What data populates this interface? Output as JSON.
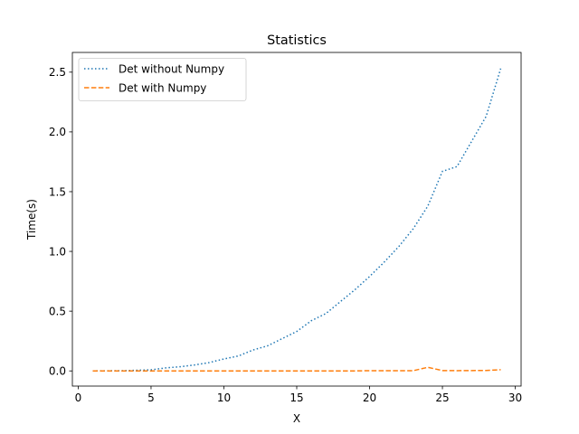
{
  "chart_data": {
    "type": "line",
    "title": "Statistics",
    "xlabel": "X",
    "ylabel": "Time(s)",
    "xlim": [
      -0.4,
      30.4
    ],
    "ylim": [
      -0.127,
      2.665
    ],
    "xticks": [
      0,
      5,
      10,
      15,
      20,
      25,
      30
    ],
    "yticks": [
      0.0,
      0.5,
      1.0,
      1.5,
      2.0,
      2.5
    ],
    "ytick_labels": [
      "0.0",
      "0.5",
      "1.0",
      "1.5",
      "2.0",
      "2.5"
    ],
    "grid": false,
    "legend_position": "top-left",
    "x": [
      1,
      2,
      3,
      4,
      5,
      6,
      7,
      8,
      9,
      10,
      11,
      12,
      13,
      14,
      15,
      16,
      17,
      18,
      19,
      20,
      21,
      22,
      23,
      24,
      25,
      26,
      27,
      28,
      29
    ],
    "series": [
      {
        "name": "Det without Numpy",
        "style": "dotted",
        "color": "#1f77b4",
        "values": [
          0.0,
          0.001,
          0.002,
          0.005,
          0.009,
          0.025,
          0.035,
          0.05,
          0.07,
          0.1,
          0.125,
          0.175,
          0.21,
          0.27,
          0.33,
          0.42,
          0.48,
          0.58,
          0.68,
          0.79,
          0.91,
          1.04,
          1.19,
          1.38,
          1.67,
          1.71,
          1.92,
          2.13,
          2.53
        ]
      },
      {
        "name": "Det with Numpy",
        "style": "dashed",
        "color": "#ff7f0e",
        "values": [
          0.0,
          0.0,
          0.0,
          0.0,
          0.0,
          0.0,
          0.0,
          0.0,
          0.0,
          0.0,
          0.0,
          0.0,
          0.0,
          0.0,
          0.0,
          0.0,
          0.0,
          0.0,
          0.0,
          0.002,
          0.002,
          0.002,
          0.002,
          0.03,
          0.003,
          0.002,
          0.003,
          0.004,
          0.01
        ]
      }
    ]
  }
}
